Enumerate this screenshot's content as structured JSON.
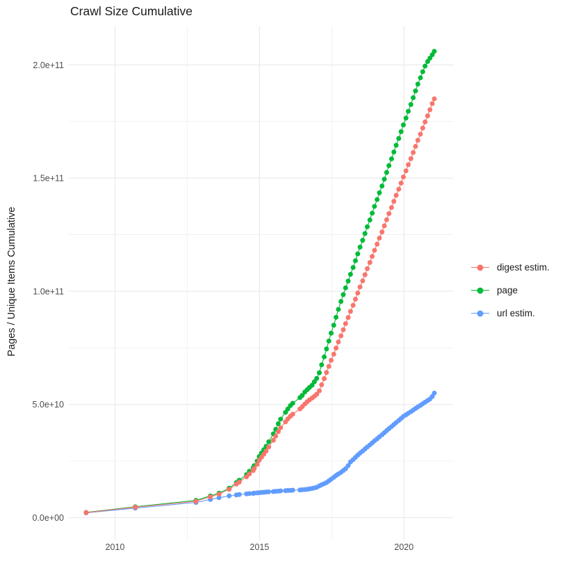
{
  "title": "Crawl Size Cumulative",
  "y_axis_title": "Pages / Unique Items Cumulative",
  "legend": {
    "items": [
      {
        "label": "digest estim.",
        "color": "#F8766D"
      },
      {
        "label": "page",
        "color": "#00BA38"
      },
      {
        "label": "url estim.",
        "color": "#619CFF"
      }
    ]
  },
  "chart_data": {
    "type": "line",
    "markers": true,
    "title": "Crawl Size Cumulative",
    "xlabel": "",
    "ylabel": "Pages / Unique Items Cumulative",
    "grid": true,
    "legend_position": "right",
    "background": "#ffffff",
    "grid_color": "#ebebeb",
    "xlim": [
      2008.4,
      2021.7
    ],
    "ylim": [
      -10000000000.0,
      217000000000.0
    ],
    "x_ticks": [
      {
        "value": 2010,
        "label": "2010"
      },
      {
        "value": 2015,
        "label": "2015"
      },
      {
        "value": 2020,
        "label": "2020"
      }
    ],
    "x_minor": [
      2012.5,
      2017.5
    ],
    "y_ticks": [
      {
        "value": 0,
        "label": "0.0e+00"
      },
      {
        "value": 50000000000.0,
        "label": "5.0e+10"
      },
      {
        "value": 100000000000.0,
        "label": "1.0e+11"
      },
      {
        "value": 150000000000.0,
        "label": "1.5e+11"
      },
      {
        "value": 200000000000.0,
        "label": "2.0e+11"
      }
    ],
    "y_minor": [
      25000000000.0,
      75000000000.0,
      125000000000.0,
      175000000000.0
    ],
    "x": [
      2009.0,
      2010.7,
      2012.8,
      2013.3,
      2013.6,
      2013.95,
      2014.2,
      2014.3,
      2014.55,
      2014.65,
      2014.78,
      2014.82,
      2014.92,
      2014.99,
      2015.07,
      2015.15,
      2015.23,
      2015.32,
      2015.48,
      2015.56,
      2015.65,
      2015.73,
      2015.9,
      2015.98,
      2016.07,
      2016.15,
      2016.4,
      2016.48,
      2016.57,
      2016.65,
      2016.73,
      2016.82,
      2016.9,
      2016.98,
      2017.07,
      2017.15,
      2017.24,
      2017.32,
      2017.4,
      2017.48,
      2017.57,
      2017.65,
      2017.73,
      2017.82,
      2017.9,
      2017.98,
      2018.07,
      2018.15,
      2018.24,
      2018.32,
      2018.4,
      2018.48,
      2018.57,
      2018.65,
      2018.73,
      2018.82,
      2018.9,
      2018.98,
      2019.07,
      2019.15,
      2019.24,
      2019.32,
      2019.4,
      2019.48,
      2019.57,
      2019.65,
      2019.73,
      2019.82,
      2019.9,
      2019.98,
      2020.07,
      2020.15,
      2020.24,
      2020.32,
      2020.4,
      2020.48,
      2020.57,
      2020.65,
      2020.73,
      2020.82,
      2020.9,
      2020.98,
      2021.05
    ],
    "series": [
      {
        "name": "digest estim.",
        "color": "#F8766D",
        "values": [
          2200000000.0,
          4600000000.0,
          7200000000.0,
          9200000000.0,
          10400000000.0,
          12500000000.0,
          14800000000.0,
          15700000000.0,
          18000000000.0,
          19300000000.0,
          20800000000.0,
          21700000000.0,
          23500000000.0,
          25300000000.0,
          26700000000.0,
          28000000000.0,
          29400000000.0,
          31200000000.0,
          34200000000.0,
          36000000000.0,
          38000000000.0,
          39700000000.0,
          42300000000.0,
          43600000000.0,
          44800000000.0,
          45700000000.0,
          48000000000.0,
          49000000000.0,
          50200000000.0,
          51200000000.0,
          52000000000.0,
          52800000000.0,
          53600000000.0,
          54500000000.0,
          56000000000.0,
          58700000000.0,
          61400000000.0,
          64100000000.0,
          66800000000.0,
          69500000000.0,
          72200000000.0,
          74900000000.0,
          77600000000.0,
          80300000000.0,
          83000000000.0,
          85700000000.0,
          88400000000.0,
          91100000000.0,
          93800000000.0,
          96500000000.0,
          99200000000.0,
          101900000000.0,
          104600000000.0,
          107300000000.0,
          110000000000.0,
          112700000000.0,
          115400000000.0,
          118100000000.0,
          120800000000.0,
          123500000000.0,
          126200000000.0,
          128900000000.0,
          131600000000.0,
          134300000000.0,
          137000000000.0,
          139700000000.0,
          142400000000.0,
          145100000000.0,
          147800000000.0,
          150500000000.0,
          153200000000.0,
          155900000000.0,
          158600000000.0,
          161300000000.0,
          164000000000.0,
          166700000000.0,
          169400000000.0,
          172100000000.0,
          174800000000.0,
          177500000000.0,
          180200000000.0,
          182900000000.0,
          185000000000.0
        ]
      },
      {
        "name": "page",
        "color": "#00BA38",
        "values": [
          2300000000.0,
          4800000000.0,
          7600000000.0,
          9600000000.0,
          10800000000.0,
          13000000000.0,
          15500000000.0,
          16500000000.0,
          19000000000.0,
          20500000000.0,
          22000000000.0,
          23000000000.0,
          25000000000.0,
          27000000000.0,
          28500000000.0,
          30000000000.0,
          31500000000.0,
          33500000000.0,
          37000000000.0,
          39000000000.0,
          41500000000.0,
          43500000000.0,
          46500000000.0,
          48000000000.0,
          49500000000.0,
          50500000000.0,
          53000000000.0,
          54000000000.0,
          55500000000.0,
          56500000000.0,
          57500000000.0,
          58500000000.0,
          60000000000.0,
          61500000000.0,
          64000000000.0,
          67500000000.0,
          71000000000.0,
          74500000000.0,
          78000000000.0,
          81500000000.0,
          85000000000.0,
          88500000000.0,
          92000000000.0,
          95500000000.0,
          98500000000.0,
          101500000000.0,
          104500000000.0,
          107500000000.0,
          110500000000.0,
          113500000000.0,
          116500000000.0,
          119500000000.0,
          122500000000.0,
          125500000000.0,
          128500000000.0,
          131500000000.0,
          134500000000.0,
          137500000000.0,
          140500000000.0,
          143500000000.0,
          146500000000.0,
          149500000000.0,
          152500000000.0,
          155500000000.0,
          158500000000.0,
          161500000000.0,
          164500000000.0,
          167500000000.0,
          170500000000.0,
          173500000000.0,
          176500000000.0,
          179500000000.0,
          182500000000.0,
          185500000000.0,
          188500000000.0,
          191500000000.0,
          194300000000.0,
          197000000000.0,
          199500000000.0,
          201500000000.0,
          203000000000.0,
          204500000000.0,
          206000000000.0
        ]
      },
      {
        "name": "url estim.",
        "color": "#619CFF",
        "values": [
          2100000000.0,
          4200000000.0,
          6700000000.0,
          8000000000.0,
          8800000000.0,
          9600000000.0,
          10000000000.0,
          10200000000.0,
          10500000000.0,
          10600000000.0,
          10700000000.0,
          10800000000.0,
          10900000000.0,
          11000000000.0,
          11100000000.0,
          11200000000.0,
          11300000000.0,
          11400000000.0,
          11500000000.0,
          11600000000.0,
          11700000000.0,
          11800000000.0,
          11900000000.0,
          12000000000.0,
          12000000000.0,
          12100000000.0,
          12200000000.0,
          12300000000.0,
          12400000000.0,
          12500000000.0,
          12700000000.0,
          12900000000.0,
          13100000000.0,
          13400000000.0,
          14000000000.0,
          14500000000.0,
          15000000000.0,
          15500000000.0,
          16200000000.0,
          17000000000.0,
          17800000000.0,
          18600000000.0,
          19300000000.0,
          20000000000.0,
          20800000000.0,
          21600000000.0,
          23000000000.0,
          24600000000.0,
          25600000000.0,
          26600000000.0,
          27600000000.0,
          28500000000.0,
          29400000000.0,
          30300000000.0,
          31200000000.0,
          32100000000.0,
          33000000000.0,
          33900000000.0,
          34800000000.0,
          35700000000.0,
          36600000000.0,
          37500000000.0,
          38400000000.0,
          39300000000.0,
          40200000000.0,
          41100000000.0,
          42000000000.0,
          42900000000.0,
          43800000000.0,
          44700000000.0,
          45400000000.0,
          46100000000.0,
          46800000000.0,
          47500000000.0,
          48200000000.0,
          48900000000.0,
          49600000000.0,
          50300000000.0,
          51000000000.0,
          51700000000.0,
          52400000000.0,
          53500000000.0,
          55000000000.0
        ]
      }
    ],
    "draw_order": [
      "url estim.",
      "page",
      "digest estim."
    ],
    "point_radius": 3.5
  }
}
